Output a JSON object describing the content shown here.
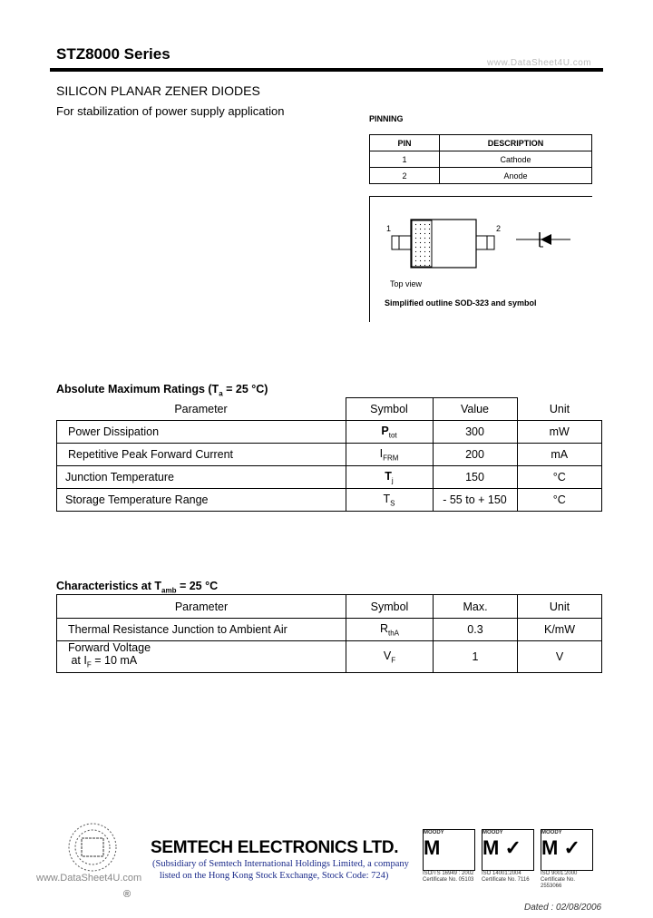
{
  "header": {
    "title": "STZ8000 Series",
    "watermark": "www.DataSheet4U.com"
  },
  "heading": "SILICON PLANAR ZENER DIODES",
  "subtitle": "For stabilization of power supply application",
  "pinning": {
    "label": "PINNING",
    "headers": [
      "PIN",
      "DESCRIPTION"
    ],
    "rows": [
      [
        "1",
        "Cathode"
      ],
      [
        "2",
        "Anode"
      ]
    ]
  },
  "outline": {
    "pin1": "1",
    "pin2": "2",
    "top_view": "Top view",
    "caption": "Simplified outline SOD-323  and symbol"
  },
  "abs_max": {
    "title": "Absolute Maximum Ratings (T",
    "title_sub": "a",
    "title_end": " = 25 °C)",
    "headers": [
      "Parameter",
      "Symbol",
      "Value",
      "Unit"
    ],
    "rows": [
      {
        "param": "Power Dissipation",
        "sym": "P",
        "sym_sub": "tot",
        "value": "300",
        "unit": "mW"
      },
      {
        "param": "Repetitive Peak Forward Current",
        "sym": "I",
        "sym_sub": "FRM",
        "value": "200",
        "unit": "mA"
      },
      {
        "param": "Junction Temperature",
        "sym": "T",
        "sym_sub": "j",
        "value": "150",
        "unit": "°C"
      },
      {
        "param": "Storage Temperature Range",
        "sym": "T",
        "sym_sub": "S",
        "value": "- 55 to + 150",
        "unit": "°C"
      }
    ]
  },
  "chars": {
    "title": "Characteristics at T",
    "title_sub": "amb",
    "title_end": " = 25 °C",
    "headers": [
      "Parameter",
      "Symbol",
      "Max.",
      "Unit"
    ],
    "rows": [
      {
        "param": "Thermal Resistance Junction to Ambient Air",
        "sym": "R",
        "sym_sub": "thA",
        "value": "0.3",
        "unit": "K/mW"
      },
      {
        "param": "Forward Voltage",
        "param2a": "at I",
        "param2sub": "F",
        "param2b": " = 10 mA",
        "sym": "V",
        "sym_sub": "F",
        "value": "1",
        "unit": "V"
      }
    ]
  },
  "footer": {
    "company": "SEMTECH ELECTRONICS LTD.",
    "sub1": "(Subsidiary of Semtech International Holdings Limited, a company",
    "sub2": "listed on the Hong Kong Stock Exchange, Stock Code: 724)",
    "watermark": "www.DataSheet4U.com",
    "registered": "®",
    "certs": [
      {
        "brand": "MOODY",
        "std": "ISO/TS 16949 : 2002",
        "no": "Certificate No. 05103"
      },
      {
        "brand": "MOODY",
        "std": "ISO 14001:2004",
        "no": "Certificate No. 7116"
      },
      {
        "brand": "MOODY",
        "std": "ISO 9001:2000",
        "no": "Certificate No. 2553066"
      }
    ],
    "dated": "Dated : 02/08/2006"
  }
}
